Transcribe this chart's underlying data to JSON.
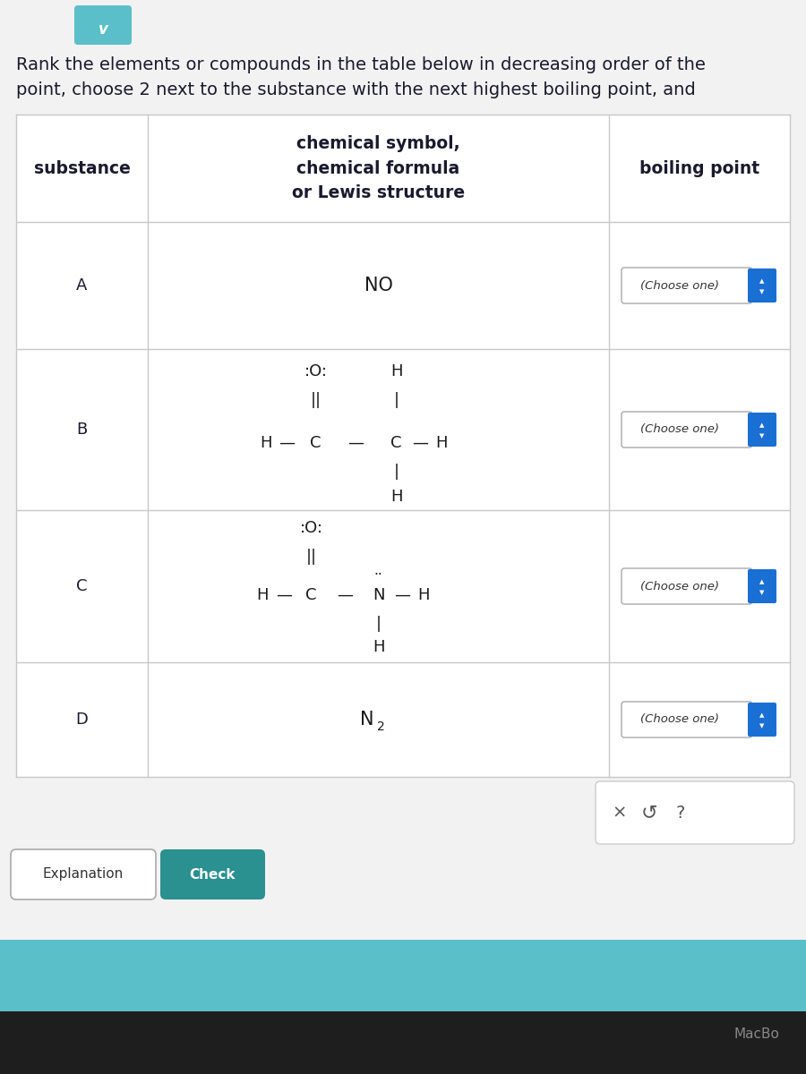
{
  "bg_color": "#f2f2f2",
  "page_bg": "#ffffff",
  "header_text_line1": "Rank the elements or compounds in the table below in decreasing order of the",
  "header_text_line2": "point, choose 2 next to the substance with the next highest boiling point, and  ",
  "table_header_col1": "substance",
  "table_header_col2": "chemical symbol,\nchemical formula\nor Lewis structure",
  "table_header_col3": "boiling point",
  "choose_one_text": "(Choose one)",
  "choose_one_arrow_color": "#1a6fd4",
  "explanation_text": "Explanation",
  "check_text": "Check",
  "check_bg": "#2a9090",
  "check_text_color": "#ffffff",
  "macbook_text": "MacBo",
  "bottom_bar_color": "#5bbfc9",
  "top_badge_color": "#5bbfc9",
  "table_line_color": "#c8c8c8",
  "text_color": "#1a1a2e",
  "struct_color": "#1a1a1a",
  "font_size_header": 14,
  "font_size_table_hdr": 13.5,
  "font_size_label": 13,
  "font_size_struct": 12.5
}
